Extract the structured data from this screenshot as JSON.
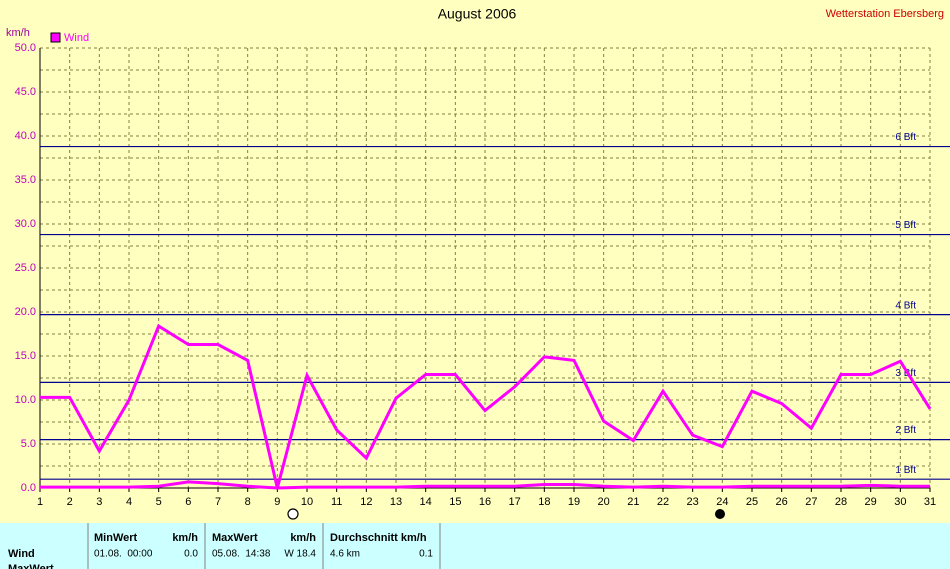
{
  "chart_data": {
    "type": "line",
    "title": "August 2006",
    "subtitle": "Wetterstation Ebersberg",
    "y_label": "km/h",
    "x": [
      1,
      2,
      3,
      4,
      5,
      6,
      7,
      8,
      9,
      10,
      11,
      12,
      13,
      14,
      15,
      16,
      17,
      18,
      19,
      20,
      21,
      22,
      23,
      24,
      25,
      26,
      27,
      28,
      29,
      30,
      31
    ],
    "xlim": [
      1,
      31
    ],
    "xticks": [
      1,
      2,
      3,
      4,
      5,
      6,
      7,
      8,
      9,
      10,
      11,
      12,
      13,
      14,
      15,
      16,
      17,
      18,
      19,
      20,
      21,
      22,
      23,
      24,
      25,
      26,
      27,
      28,
      29,
      30,
      31
    ],
    "ylim": [
      0,
      50
    ],
    "yticks": [
      {
        "value": 0,
        "label": "0.0"
      },
      {
        "value": 5,
        "label": "5.0"
      },
      {
        "value": 10,
        "label": "10.0"
      },
      {
        "value": 15,
        "label": "15.0"
      },
      {
        "value": 20,
        "label": "20.0"
      },
      {
        "value": 25,
        "label": "25.0"
      },
      {
        "value": 30,
        "label": "30.0"
      },
      {
        "value": 35,
        "label": "35.0"
      },
      {
        "value": 40,
        "label": "40.0"
      },
      {
        "value": 45,
        "label": "45.0"
      },
      {
        "value": 50,
        "label": "50.0"
      }
    ],
    "y_minor_ticks": [
      2.5,
      7.5,
      12.5,
      17.5,
      22.5,
      27.5,
      32.5,
      37.5,
      42.5,
      47.5
    ],
    "grid": true,
    "series": [
      {
        "name": "Wind",
        "color": "#ff00ff",
        "values": [
          10.3,
          10.3,
          4.2,
          10.0,
          18.4,
          16.3,
          16.3,
          14.5,
          0.0,
          12.8,
          6.6,
          3.4,
          10.2,
          12.9,
          12.9,
          8.8,
          11.5,
          14.9,
          14.5,
          7.6,
          5.4,
          11.0,
          6.0,
          4.7,
          11.0,
          9.6,
          6.8,
          12.9,
          12.9,
          14.4,
          9.0
        ]
      },
      {
        "color": "#ff00ff",
        "values": [
          0.1,
          0.1,
          0.1,
          0.1,
          0.2,
          0.7,
          0.5,
          0.2,
          0.0,
          0.1,
          0.1,
          0.1,
          0.1,
          0.2,
          0.2,
          0.2,
          0.2,
          0.4,
          0.4,
          0.2,
          0.1,
          0.2,
          0.1,
          0.1,
          0.2,
          0.2,
          0.2,
          0.2,
          0.3,
          0.2,
          0.2
        ]
      }
    ],
    "reference_lines": [
      {
        "value": 1,
        "label": "1 Bft"
      },
      {
        "value": 5.5,
        "label": "2 Bft"
      },
      {
        "value": 12,
        "label": "3 Bft"
      },
      {
        "value": 19.7,
        "label": "4 Bft"
      },
      {
        "value": 28.8,
        "label": "5 Bft"
      },
      {
        "value": 38.8,
        "label": "6 Bft"
      }
    ],
    "reference_color": "#000090"
  },
  "table": {
    "headers": [
      "MinWert",
      "km/h",
      "MaxWert",
      "km/h",
      "Durchschnitt km/h"
    ],
    "rows": [
      [
        "Wind",
        "01.08.  00:00",
        "0.0",
        "05.08.  14:38",
        "W 18.4",
        "4.6 km",
        "0.1"
      ],
      [
        "MaxWert"
      ]
    ]
  }
}
